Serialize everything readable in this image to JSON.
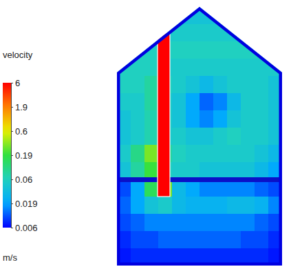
{
  "chart_data": {
    "type": "heatmap",
    "log": true,
    "colorbar": {
      "title": "velocity",
      "unit": "m/s",
      "range": [
        0.006,
        6
      ],
      "ticks": [
        6,
        1.9,
        0.6,
        0.19,
        0.06,
        0.019,
        0.006
      ]
    },
    "duct_velocity": 6,
    "cells": [
      [
        0.04,
        0.04,
        0.04,
        0.04,
        0.04,
        0.04,
        0.04,
        0.04,
        0.04,
        0.04,
        0.04,
        0.04
      ],
      [
        0.05,
        0.05,
        0.05,
        0.05,
        0.05,
        0.05,
        0.05,
        0.05,
        0.05,
        0.05,
        0.05,
        0.05
      ],
      [
        0.06,
        0.06,
        0.06,
        0.06,
        0.06,
        0.06,
        0.06,
        0.06,
        0.06,
        0.06,
        0.06,
        0.06
      ],
      [
        0.06,
        0.06,
        0.06,
        0.05,
        0.05,
        0.05,
        0.05,
        0.05,
        0.05,
        0.05,
        0.05,
        0.05
      ],
      [
        0.06,
        0.06,
        0.08,
        0.06,
        0.05,
        0.04,
        0.03,
        0.04,
        0.05,
        0.05,
        0.05,
        0.04
      ],
      [
        0.05,
        0.05,
        0.08,
        0.05,
        0.04,
        0.02,
        0.012,
        0.015,
        0.03,
        0.05,
        0.05,
        0.04
      ],
      [
        0.04,
        0.05,
        0.07,
        0.05,
        0.04,
        0.02,
        0.015,
        0.02,
        0.04,
        0.05,
        0.05,
        0.04
      ],
      [
        0.04,
        0.05,
        0.07,
        0.05,
        0.05,
        0.04,
        0.04,
        0.05,
        0.06,
        0.05,
        0.05,
        0.04
      ],
      [
        0.05,
        0.1,
        0.3,
        0.08,
        0.06,
        0.05,
        0.05,
        0.05,
        0.05,
        0.05,
        0.04,
        0.03
      ],
      [
        0.04,
        0.08,
        0.2,
        0.06,
        0.05,
        0.05,
        0.04,
        0.04,
        0.04,
        0.04,
        0.03,
        0.02
      ],
      [
        0.01,
        0.02,
        0.15,
        0.3,
        0.03,
        0.02,
        0.015,
        0.015,
        0.015,
        0.015,
        0.012,
        0.01
      ],
      [
        0.012,
        0.02,
        0.04,
        0.05,
        0.03,
        0.025,
        0.025,
        0.025,
        0.03,
        0.03,
        0.025,
        0.015
      ],
      [
        0.01,
        0.012,
        0.015,
        0.015,
        0.015,
        0.015,
        0.015,
        0.015,
        0.015,
        0.015,
        0.012,
        0.01
      ],
      [
        0.008,
        0.01,
        0.01,
        0.012,
        0.012,
        0.012,
        0.012,
        0.012,
        0.012,
        0.01,
        0.01,
        0.008
      ],
      [
        0.007,
        0.008,
        0.008,
        0.008,
        0.008,
        0.008,
        0.008,
        0.008,
        0.008,
        0.008,
        0.008,
        0.007
      ]
    ]
  }
}
